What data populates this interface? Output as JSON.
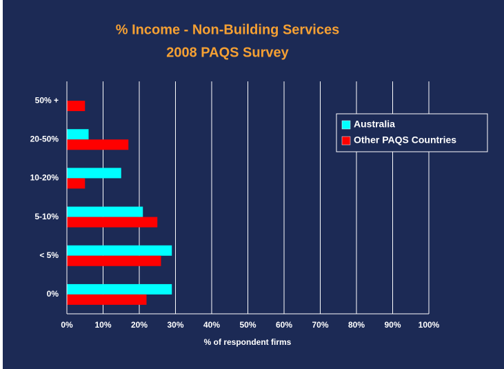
{
  "chart_data": {
    "type": "barh",
    "title": "% Income - Non-Building Services",
    "subtitle": "2008 PAQS Survey",
    "xlabel": "% of respondent firms",
    "categories": [
      "50% +",
      "20-50%",
      "10-20%",
      "5-10%",
      "< 5%",
      "0%"
    ],
    "series": [
      {
        "name": "Australia",
        "color": "#00ffff",
        "values": [
          0,
          6,
          15,
          21,
          29,
          29
        ]
      },
      {
        "name": "Other PAQS Countries",
        "color": "#ff0000",
        "values": [
          5,
          17,
          5,
          25,
          26,
          22
        ]
      }
    ],
    "xlim": [
      0,
      100
    ],
    "xticks": [
      {
        "value": 0,
        "label": "0%"
      },
      {
        "value": 10,
        "label": "10%"
      },
      {
        "value": 20,
        "label": "20%"
      },
      {
        "value": 30,
        "label": "30%"
      },
      {
        "value": 40,
        "label": "40%"
      },
      {
        "value": 50,
        "label": "50%"
      },
      {
        "value": 60,
        "label": "60%"
      },
      {
        "value": 70,
        "label": "70%"
      },
      {
        "value": 80,
        "label": "80%"
      },
      {
        "value": 90,
        "label": "90%"
      },
      {
        "value": 100,
        "label": "100%"
      }
    ],
    "grid": true,
    "legend": "upper right"
  }
}
